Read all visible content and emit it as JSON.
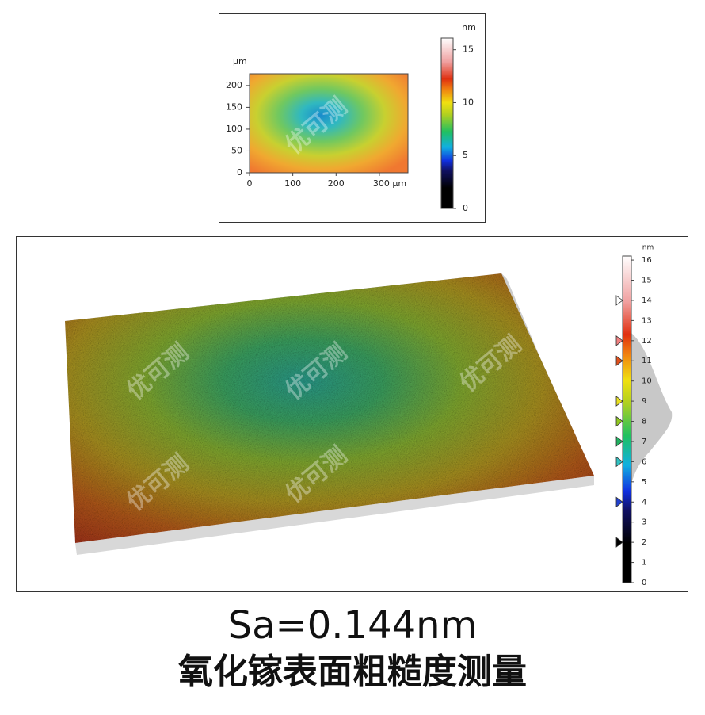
{
  "chart_data": [
    {
      "type": "heatmap",
      "y_unit": "μm",
      "xlim": [
        0,
        366
      ],
      "ylim": [
        0,
        227
      ],
      "xticks": [
        0,
        100,
        200,
        {
          "value": 300,
          "label": "300 μm"
        }
      ],
      "yticks": [
        0,
        50,
        100,
        150,
        200
      ],
      "colorbar": {
        "unit": "nm",
        "lim": [
          0,
          16.1
        ],
        "ticks": [
          0,
          5,
          10,
          15
        ]
      },
      "watermark": "优可测"
    },
    {
      "type": "surface3d",
      "colorbar": {
        "unit": "nm",
        "lim": [
          0,
          16.2
        ],
        "ticks": [
          0,
          1,
          2,
          3,
          4,
          5,
          6,
          7,
          8,
          9,
          10,
          11,
          12,
          13,
          14,
          15,
          16
        ],
        "markers": [
          {
            "value": 14,
            "color": "#ffffff"
          },
          {
            "value": 12,
            "color": "#f08080"
          },
          {
            "value": 11,
            "color": "#e0501c"
          },
          {
            "value": 9,
            "color": "#e8e020"
          },
          {
            "value": 8,
            "color": "#90c820"
          },
          {
            "value": 7,
            "color": "#20b060"
          },
          {
            "value": 6,
            "color": "#30c0c0"
          },
          {
            "value": 4,
            "color": "#2040d0"
          },
          {
            "value": 2,
            "color": "#000000"
          }
        ]
      },
      "watermark": "优可测"
    }
  ],
  "caption": {
    "metric": "Sa=0.144nm",
    "title": "氧化镓表面粗糙度测量"
  }
}
